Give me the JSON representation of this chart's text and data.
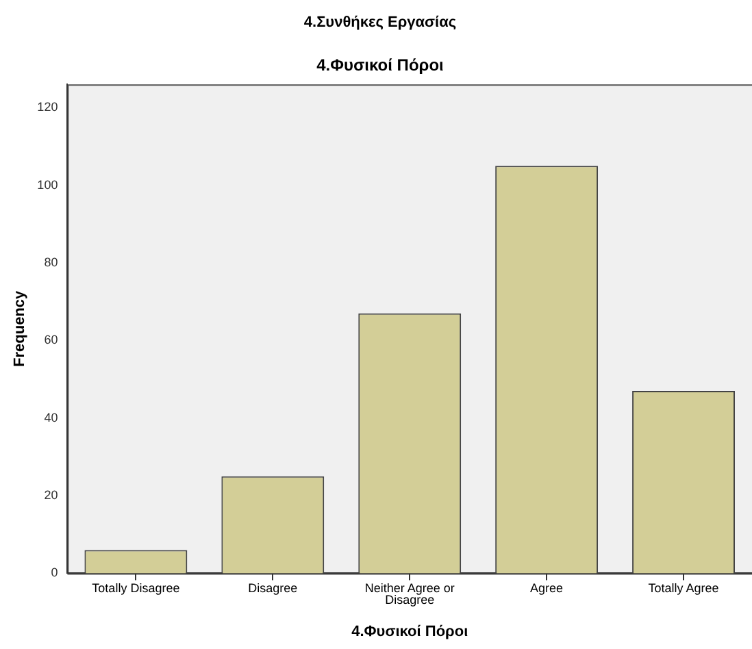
{
  "chart_data": {
    "type": "bar",
    "title": "4.Συνθήκες Εργασίας",
    "subtitle": "4.Φυσικοί Πόροι",
    "xlabel": "4.Φυσικοί Πόροι",
    "ylabel": "Frequency",
    "categories": [
      "Totally Disagree",
      "Disagree",
      "Neither Agree or Disagree",
      "Agree",
      "Totally Agree"
    ],
    "values": [
      6,
      25,
      67,
      105,
      47
    ],
    "color": "#d3ce97",
    "ylim": [
      0,
      126
    ],
    "yticks": [
      0,
      20,
      40,
      60,
      80,
      100,
      120
    ],
    "grid": false
  }
}
